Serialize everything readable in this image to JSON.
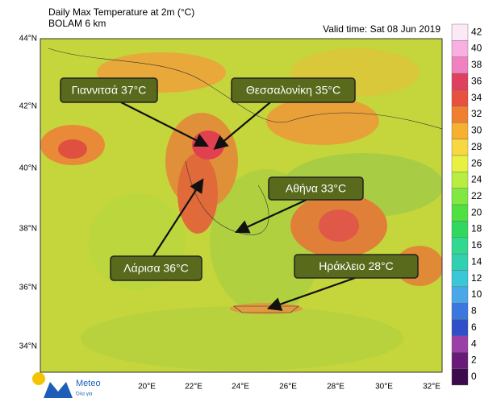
{
  "header": {
    "title": "Daily Max Temperature at 2m (°C)",
    "subtitle": "BOLAM 6 km",
    "valid_time": "Valid time: Sat 08 Jun 2019"
  },
  "latitude_labels": [
    "44°N",
    "42°N",
    "40°N",
    "38°N",
    "36°N",
    "34°N"
  ],
  "longitude_labels": [
    "20°E",
    "22°E",
    "24°E",
    "26°E",
    "28°E",
    "30°E",
    "32°E"
  ],
  "colorbar": {
    "levels": [
      0,
      2,
      4,
      6,
      8,
      10,
      12,
      14,
      16,
      18,
      20,
      22,
      24,
      26,
      28,
      30,
      32,
      34,
      36,
      38,
      40,
      42
    ],
    "colors": [
      "#3d0a4d",
      "#6a1b7a",
      "#9b3fa8",
      "#2f4fc8",
      "#3a78e0",
      "#4aa8e8",
      "#38c8d8",
      "#30d0b0",
      "#30d890",
      "#30d860",
      "#50e040",
      "#80e840",
      "#b8ee40",
      "#e8f040",
      "#f8d840",
      "#f8b030",
      "#f08030",
      "#e85040",
      "#e04060",
      "#f080c0",
      "#f8b0e0",
      "#fce8f6"
    ]
  },
  "callouts": [
    {
      "label": "Γιαννιτσά 37°C"
    },
    {
      "label": "Θεσσαλονίκη 35°C"
    },
    {
      "label": "Αθήνα 33°C"
    },
    {
      "label": "Λάρισα 36°C"
    },
    {
      "label": "Ηράκλειο 28°C"
    }
  ],
  "logo": {
    "name": "Meteo",
    "tagline": "Όλα για"
  }
}
